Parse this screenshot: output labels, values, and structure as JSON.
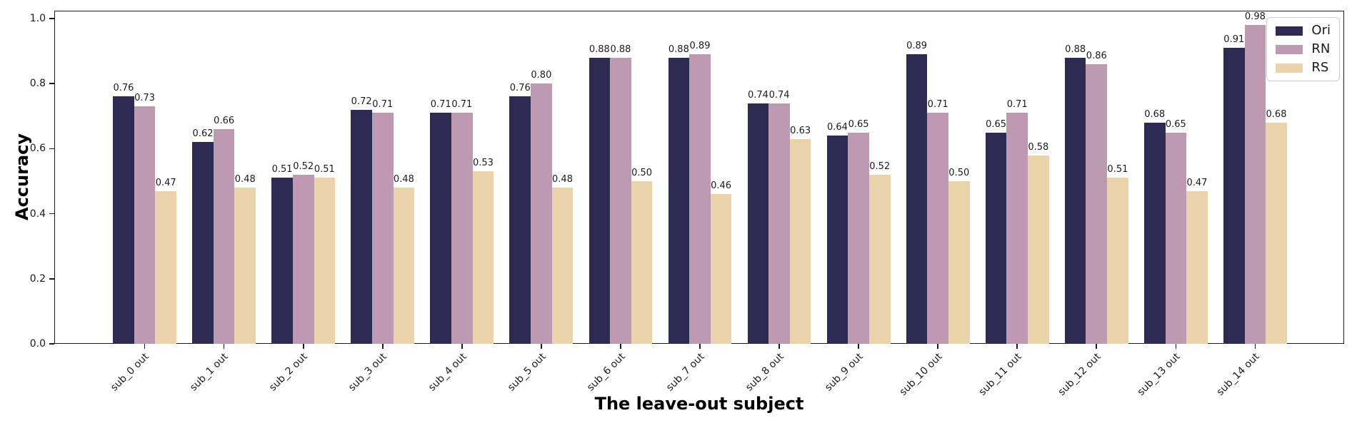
{
  "chart_data": {
    "type": "bar",
    "title": "",
    "xlabel": "The leave-out subject",
    "ylabel": "Accuracy",
    "categories": [
      "sub_0 out",
      "sub_1 out",
      "sub_2 out",
      "sub_3 out",
      "sub_4 out",
      "sub_5 out",
      "sub_6 out",
      "sub_7 out",
      "sub_8 out",
      "sub_9 out",
      "sub_10 out",
      "sub_11 out",
      "sub_12 out",
      "sub_13 out",
      "sub_14 out"
    ],
    "series": [
      {
        "name": "Ori",
        "color": "#2d2b52",
        "values": [
          0.76,
          0.62,
          0.51,
          0.72,
          0.71,
          0.76,
          0.88,
          0.88,
          0.74,
          0.64,
          0.89,
          0.65,
          0.88,
          0.68,
          0.91
        ]
      },
      {
        "name": "RN",
        "color": "#be9ab0",
        "values": [
          0.73,
          0.66,
          0.52,
          0.71,
          0.71,
          0.8,
          0.88,
          0.89,
          0.74,
          0.65,
          0.71,
          0.71,
          0.86,
          0.65,
          0.98
        ]
      },
      {
        "name": "RS",
        "color": "#ead2ab",
        "values": [
          0.47,
          0.48,
          0.51,
          0.48,
          0.53,
          0.48,
          0.5,
          0.46,
          0.63,
          0.52,
          0.5,
          0.58,
          0.51,
          0.47,
          0.68
        ]
      }
    ],
    "ylim": [
      0.0,
      1.02
    ],
    "yticks": [
      "0.0",
      "0.2",
      "0.4",
      "0.6",
      "0.8",
      "1.0"
    ],
    "bar_label_decimals": 2,
    "legend_position": "upper right",
    "grid": false
  }
}
